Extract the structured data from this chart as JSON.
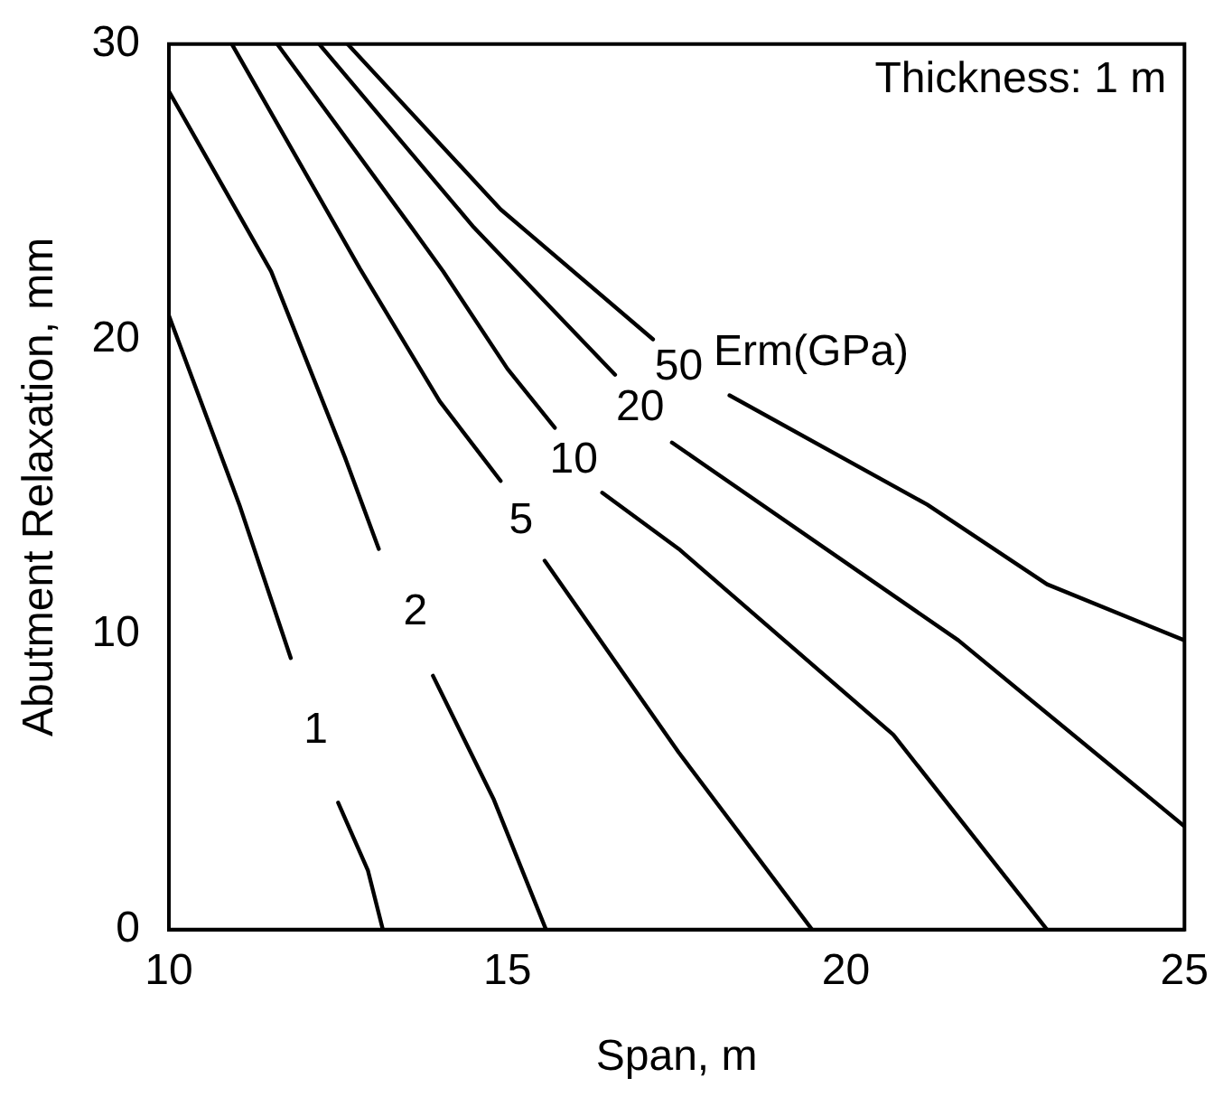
{
  "chart_data": {
    "type": "line",
    "xlabel": "Span, m",
    "ylabel": "Abutment Relaxation, mm",
    "xlim": [
      10,
      25
    ],
    "xticks": [
      10,
      15,
      20,
      25
    ],
    "ylim": [
      0,
      30
    ],
    "yticks": [
      0,
      10,
      20,
      30
    ],
    "grid": false,
    "legend": false,
    "marker": "none",
    "line_style": "solid",
    "annotations": [
      "Thickness: 1 m",
      "Erm(GPa)"
    ],
    "series": [
      {
        "name": "1",
        "color": "#000000",
        "x": [
          10,
          11.04,
          11.8,
          12.17,
          12.5,
          12.94,
          13.16
        ],
        "values": [
          20.8,
          14.4,
          9.2,
          null,
          4.3,
          2.0,
          0
        ]
      },
      {
        "name": "2",
        "color": "#000000",
        "x": [
          10,
          11.51,
          12.6,
          13.1,
          13.64,
          13.9,
          14.8,
          15.57
        ],
        "values": [
          28.4,
          22.3,
          16.0,
          12.9,
          null,
          8.6,
          4.4,
          0
        ]
      },
      {
        "name": "5",
        "color": "#000000",
        "x": [
          10.93,
          12.82,
          14.0,
          14.9,
          15.2,
          15.55,
          17.53,
          19.5
        ],
        "values": [
          30,
          22.4,
          17.9,
          15.2,
          null,
          12.5,
          6.0,
          0
        ]
      },
      {
        "name": "10",
        "color": "#000000",
        "x": [
          11.6,
          13.58,
          14.05,
          15.0,
          15.7,
          15.98,
          16.4,
          17.53,
          20.7,
          22.97
        ],
        "values": [
          30,
          23.8,
          22.3,
          19.0,
          17.0,
          null,
          14.8,
          12.9,
          6.6,
          0
        ]
      },
      {
        "name": "20",
        "color": "#000000",
        "x": [
          12.22,
          14.5,
          16.59,
          16.96,
          17.43,
          21.66,
          25
        ],
        "values": [
          30,
          23.8,
          18.8,
          null,
          16.5,
          9.8,
          3.5
        ]
      },
      {
        "name": "50",
        "color": "#000000",
        "x": [
          12.64,
          14.9,
          17.15,
          17.53,
          18.28,
          21.2,
          22.97,
          25
        ],
        "values": [
          30,
          24.4,
          20.0,
          null,
          18.1,
          14.4,
          11.7,
          9.8
        ]
      }
    ]
  }
}
